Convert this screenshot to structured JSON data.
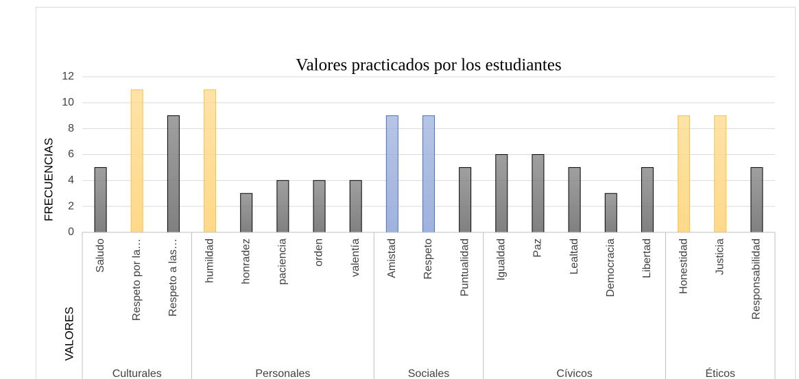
{
  "chart_data": {
    "type": "bar",
    "title": "Valores practicados por los estudiantes",
    "ylabel": "FRECUENCIAS",
    "xlabel": "VALORES",
    "groups": [
      {
        "name": "Culturales",
        "categories": [
          "Saludo",
          "Respeto por la…",
          "Respeto a las…"
        ],
        "values": [
          5,
          11,
          9
        ],
        "colors": [
          "#808080",
          "#ffd98a",
          "#808080"
        ],
        "edge_colors": [
          "#000000",
          "#f5c242",
          "#000000"
        ]
      },
      {
        "name": "Personales",
        "categories": [
          "humildad",
          "honradez",
          "paciencia",
          "orden",
          "valentía"
        ],
        "values": [
          11,
          3,
          4,
          4,
          4
        ],
        "colors": [
          "#ffd98a",
          "#808080",
          "#808080",
          "#808080",
          "#808080"
        ],
        "edge_colors": [
          "#f5c242",
          "#000000",
          "#000000",
          "#000000",
          "#000000"
        ]
      },
      {
        "name": "Sociales",
        "categories": [
          "Amistad",
          "Respeto",
          "Puntualidad"
        ],
        "values": [
          9,
          9,
          5
        ],
        "colors": [
          "#9fb2de",
          "#9fb2de",
          "#808080"
        ],
        "edge_colors": [
          "#4472c4",
          "#4472c4",
          "#000000"
        ]
      },
      {
        "name": "Cívicos",
        "categories": [
          "Igualdad",
          "Paz",
          "Lealtad",
          "Democracia",
          "Libertad"
        ],
        "values": [
          6,
          6,
          5,
          3,
          5
        ],
        "colors": [
          "#808080",
          "#808080",
          "#808080",
          "#808080",
          "#808080"
        ],
        "edge_colors": [
          "#000000",
          "#000000",
          "#000000",
          "#000000",
          "#000000"
        ]
      },
      {
        "name": "Éticos",
        "categories": [
          "Honestidad",
          "Justicia",
          "Responsabilidad"
        ],
        "values": [
          9,
          9,
          5
        ],
        "colors": [
          "#ffd98a",
          "#ffd98a",
          "#808080"
        ],
        "edge_colors": [
          "#f5c242",
          "#f5c242",
          "#000000"
        ]
      }
    ],
    "ylim": [
      0,
      12
    ],
    "yticks": [
      0,
      2,
      4,
      6,
      8,
      10,
      12
    ],
    "grid": true
  }
}
